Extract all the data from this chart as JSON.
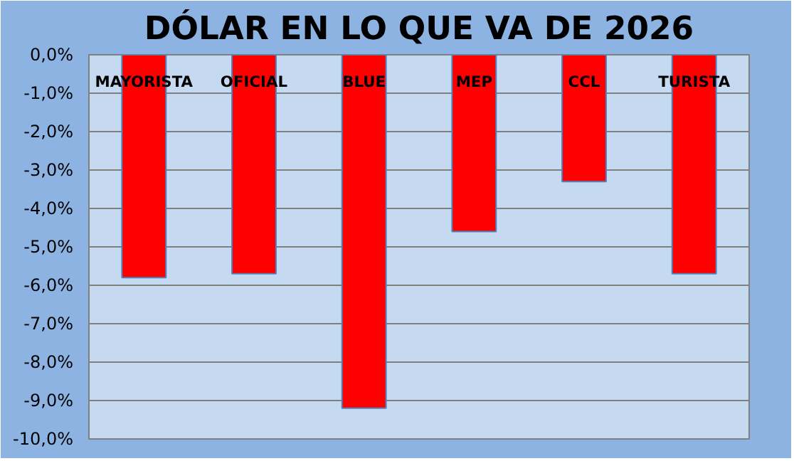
{
  "chart_data": {
    "type": "bar",
    "title": "DÓLAR EN LO QUE VA DE 2026",
    "categories": [
      "MAYORISTA",
      "OFICIAL",
      "BLUE",
      "MEP",
      "CCL",
      "TURISTA"
    ],
    "values": [
      -5.8,
      -5.7,
      -9.2,
      -4.6,
      -3.3,
      -5.7
    ],
    "color": "#ff0000",
    "ylim": [
      -10,
      0
    ],
    "yticks": [
      {
        "value": 0,
        "label": "0,0%"
      },
      {
        "value": -1,
        "label": "-1,0%"
      },
      {
        "value": -2,
        "label": "-2,0%"
      },
      {
        "value": -3,
        "label": "-3,0%"
      },
      {
        "value": -4,
        "label": "-4,0%"
      },
      {
        "value": -5,
        "label": "-5,0%"
      },
      {
        "value": -6,
        "label": "-6,0%"
      },
      {
        "value": -7,
        "label": "-7,0%"
      },
      {
        "value": -8,
        "label": "-8,0%"
      },
      {
        "value": -9,
        "label": "-9,0%"
      },
      {
        "value": -10,
        "label": "-10,0%"
      }
    ],
    "grid": "y"
  }
}
